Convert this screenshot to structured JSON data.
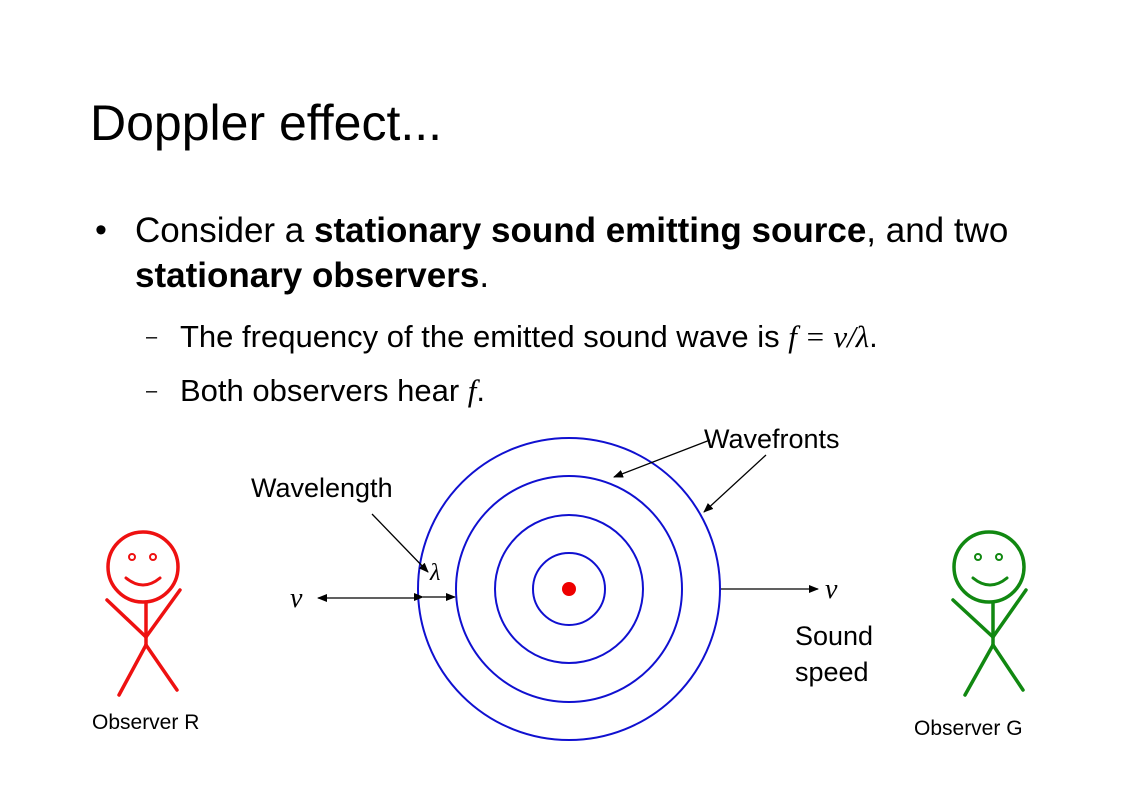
{
  "title": "Doppler effect...",
  "bullet": {
    "intro": "Consider a ",
    "bold1": "stationary sound emitting source",
    "mid": ", and two ",
    "bold2": "stationary observers",
    "end": "."
  },
  "subbullets": [
    {
      "text": "The frequency of the emitted sound wave is ",
      "math": "f = v/λ",
      "end": "."
    },
    {
      "text": "Both observers hear ",
      "math": "f",
      "end": "."
    }
  ],
  "diagram": {
    "wavefronts_label": "Wavefronts",
    "wavelength_label": "Wavelength",
    "lambda_symbol": "λ",
    "velocity_left": "v",
    "velocity_right": "v",
    "sound_speed_line1": "Sound",
    "sound_speed_line2": "speed",
    "observer_left": "Observer R",
    "observer_right": "Observer G",
    "colors": {
      "wavefront": "#1010d0",
      "source": "#ee0000",
      "observer_r": "#ee1111",
      "observer_g": "#118811"
    }
  }
}
